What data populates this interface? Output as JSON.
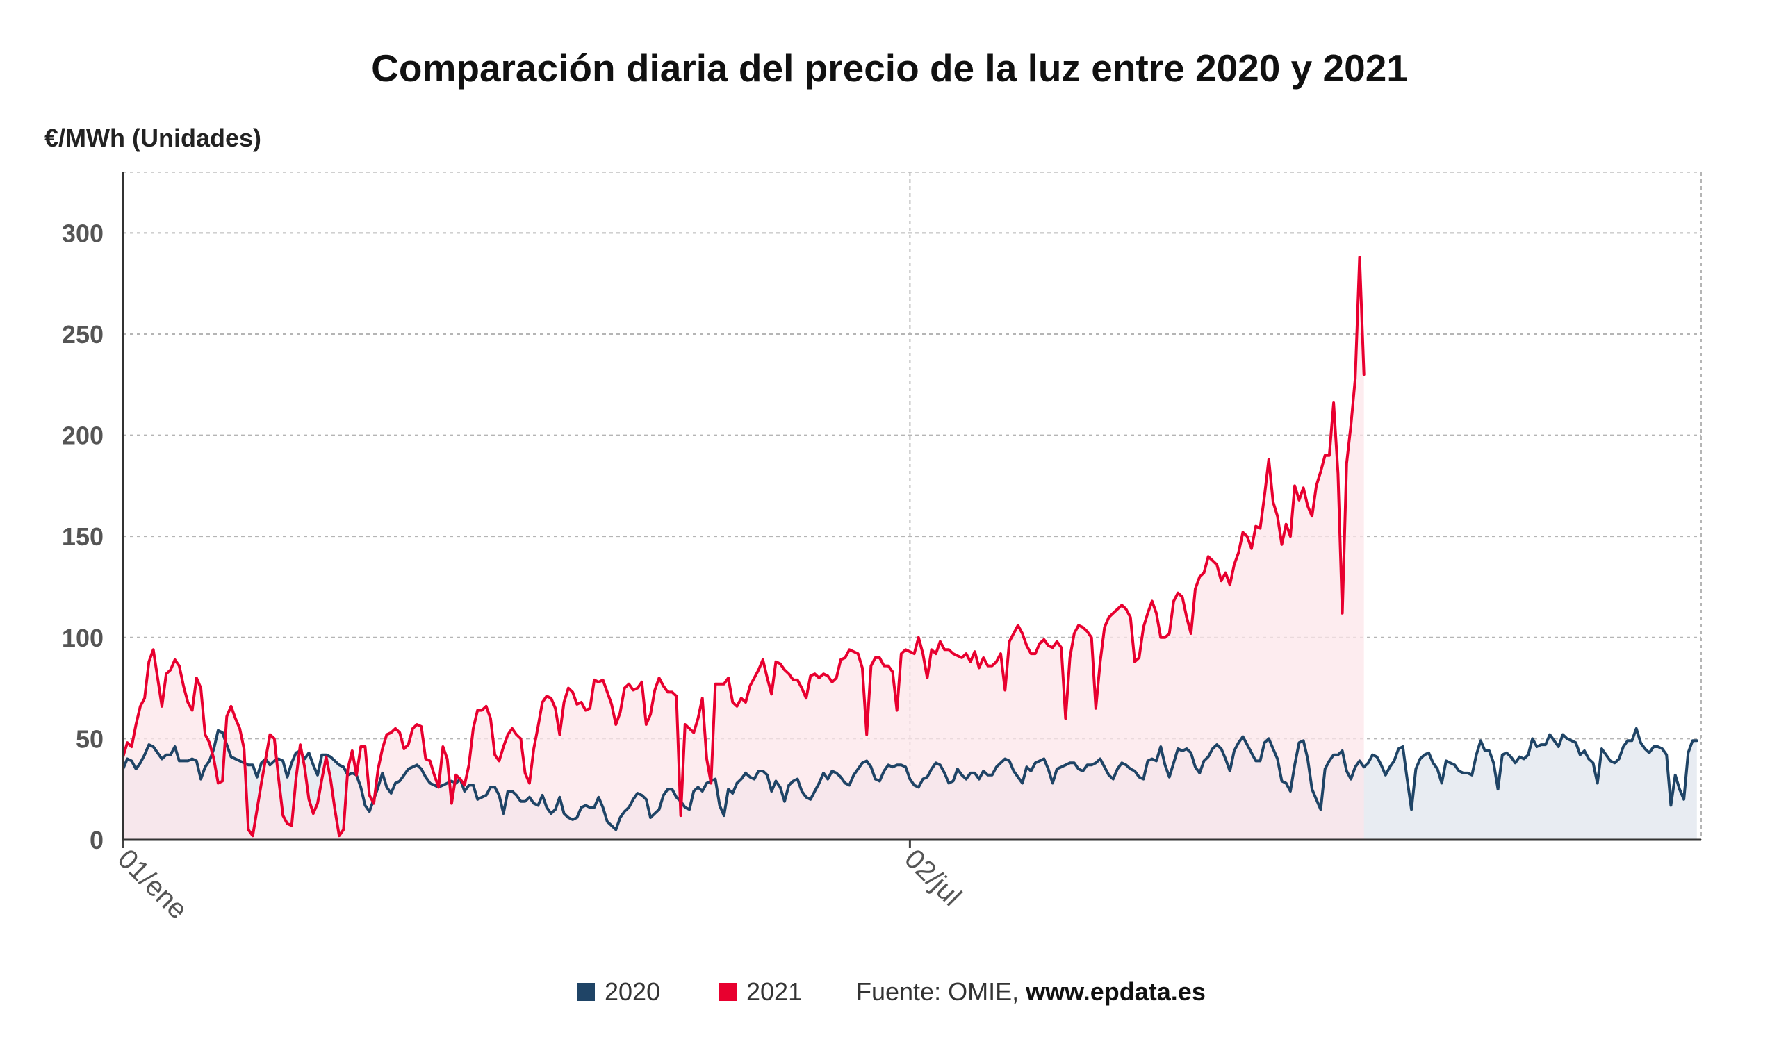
{
  "chart_data": {
    "type": "line",
    "title": "Comparación diaria del precio de la luz entre 2020 y 2021",
    "ylabel": "€/MWh (Unidades)",
    "xlabel": "",
    "ylim": [
      0,
      330
    ],
    "yticks": [
      0,
      50,
      100,
      150,
      200,
      250,
      300
    ],
    "xlim_days": [
      0,
      365
    ],
    "xticks": [
      {
        "day": 0,
        "label": "01/ene"
      },
      {
        "day": 182,
        "label": "02/jul"
      }
    ],
    "grid": true,
    "legend_position": "bottom",
    "source_label": "Fuente: OMIE, ",
    "source_site": "www.epdata.es",
    "series": [
      {
        "name": "2020",
        "color": "#1f4466",
        "fill": "#e8ecf2",
        "start_day": 0,
        "values": [
          35,
          40,
          39,
          35,
          38,
          42,
          47,
          46,
          43,
          40,
          42,
          42,
          46,
          39,
          39,
          39,
          40,
          39,
          30,
          36,
          39,
          45,
          54,
          53,
          47,
          41,
          40,
          39,
          38,
          37,
          37,
          31,
          38,
          40,
          37,
          39,
          40,
          39,
          31,
          38,
          43,
          44,
          40,
          43,
          37,
          32,
          42,
          42,
          41,
          39,
          37,
          36,
          32,
          33,
          32,
          26,
          17,
          14,
          20,
          26,
          33,
          26,
          23,
          28,
          29,
          32,
          35,
          36,
          37,
          35,
          31,
          28,
          27,
          26,
          27,
          28,
          29,
          28,
          30,
          24,
          27,
          27,
          20,
          21,
          22,
          26,
          26,
          22,
          13,
          24,
          24,
          22,
          19,
          19,
          21,
          18,
          17,
          22,
          16,
          13,
          15,
          21,
          13,
          11,
          10,
          11,
          16,
          17,
          16,
          16,
          21,
          16,
          9,
          7,
          5,
          11,
          14,
          16,
          20,
          23,
          22,
          20,
          11,
          13,
          15,
          22,
          25,
          25,
          21,
          19,
          16,
          15,
          24,
          26,
          24,
          28,
          29,
          30,
          17,
          12,
          25,
          23,
          28,
          30,
          33,
          31,
          30,
          34,
          34,
          32,
          24,
          29,
          26,
          19,
          27,
          29,
          30,
          24,
          21,
          20,
          24,
          28,
          33,
          30,
          34,
          33,
          31,
          28,
          27,
          32,
          35,
          38,
          39,
          36,
          30,
          29,
          34,
          37,
          36,
          37,
          37,
          36,
          30,
          27,
          26,
          30,
          31,
          35,
          38,
          37,
          33,
          28,
          29,
          35,
          32,
          30,
          33,
          33,
          30,
          34,
          32,
          32,
          36,
          38,
          40,
          39,
          34,
          31,
          28,
          36,
          34,
          38,
          39,
          40,
          35,
          28,
          35,
          36,
          37,
          38,
          38,
          35,
          34,
          37,
          37,
          38,
          40,
          36,
          32,
          30,
          35,
          38,
          37,
          35,
          34,
          31,
          30,
          39,
          40,
          39,
          46,
          37,
          31,
          38,
          45,
          44,
          45,
          43,
          36,
          33,
          39,
          41,
          45,
          47,
          45,
          40,
          34,
          44,
          48,
          51,
          47,
          43,
          39,
          39,
          48,
          50,
          45,
          40,
          29,
          28,
          24,
          37,
          48,
          49,
          40,
          25,
          20,
          15,
          35,
          39,
          42,
          42,
          44,
          34,
          30,
          36,
          39,
          36,
          38,
          42,
          41,
          37,
          32,
          36,
          39,
          45,
          46,
          30,
          15,
          35,
          40,
          42,
          43,
          38,
          35,
          28,
          39,
          38,
          37,
          34,
          33,
          33,
          32,
          42,
          49,
          44,
          44,
          38,
          25,
          42,
          43,
          41,
          38,
          41,
          40,
          42,
          50,
          46,
          47,
          47,
          52,
          49,
          46,
          52,
          50,
          49,
          48,
          42,
          44,
          40,
          38,
          28,
          45,
          42,
          39,
          38,
          40,
          46,
          49,
          49,
          55,
          48,
          45,
          43,
          46,
          46,
          45,
          42,
          17,
          32,
          25,
          20,
          43,
          49,
          49
        ]
      },
      {
        "name": "2021",
        "color": "#e8002f",
        "fill": "#fce6ea",
        "start_day": 0,
        "values": [
          41,
          48,
          46,
          57,
          66,
          70,
          88,
          94,
          80,
          66,
          82,
          84,
          89,
          86,
          76,
          68,
          64,
          80,
          75,
          52,
          48,
          40,
          28,
          29,
          61,
          66,
          60,
          55,
          45,
          5,
          2,
          15,
          28,
          40,
          52,
          50,
          30,
          12,
          8,
          7,
          30,
          47,
          36,
          20,
          13,
          18,
          30,
          41,
          30,
          15,
          2,
          5,
          35,
          44,
          32,
          46,
          46,
          22,
          18,
          35,
          45,
          52,
          53,
          55,
          53,
          45,
          47,
          55,
          57,
          56,
          40,
          39,
          32,
          26,
          46,
          40,
          18,
          32,
          30,
          27,
          37,
          55,
          64,
          64,
          66,
          60,
          42,
          39,
          46,
          52,
          55,
          52,
          50,
          33,
          28,
          45,
          56,
          68,
          71,
          70,
          65,
          52,
          68,
          75,
          73,
          67,
          68,
          64,
          65,
          79,
          78,
          79,
          73,
          67,
          57,
          63,
          75,
          77,
          74,
          75,
          78,
          57,
          62,
          74,
          80,
          76,
          73,
          73,
          71,
          12,
          57,
          55,
          53,
          60,
          70,
          40,
          28,
          77,
          77,
          77,
          80,
          68,
          66,
          70,
          68,
          76,
          80,
          84,
          89,
          80,
          72,
          88,
          87,
          84,
          82,
          79,
          79,
          75,
          70,
          81,
          82,
          80,
          82,
          81,
          78,
          80,
          89,
          90,
          94,
          93,
          92,
          85,
          52,
          86,
          90,
          90,
          86,
          86,
          83,
          64,
          92,
          94,
          93,
          92,
          100,
          92,
          80,
          94,
          92,
          98,
          94,
          94,
          92,
          91,
          90,
          92,
          88,
          93,
          85,
          90,
          86,
          86,
          88,
          92,
          74,
          98,
          102,
          106,
          102,
          96,
          92,
          92,
          97,
          99,
          96,
          95,
          98,
          95,
          60,
          90,
          102,
          106,
          105,
          103,
          100,
          65,
          88,
          105,
          110,
          112,
          114,
          116,
          114,
          110,
          88,
          90,
          105,
          112,
          118,
          112,
          100,
          100,
          102,
          118,
          122,
          120,
          110,
          102,
          124,
          130,
          132,
          140,
          138,
          136,
          128,
          132,
          126,
          136,
          142,
          152,
          150,
          144,
          155,
          154,
          170,
          188,
          167,
          160,
          146,
          156,
          150,
          175,
          168,
          174,
          165,
          160,
          175,
          182,
          190,
          190,
          216,
          181,
          112,
          186,
          205,
          228,
          288,
          230
        ]
      }
    ]
  }
}
